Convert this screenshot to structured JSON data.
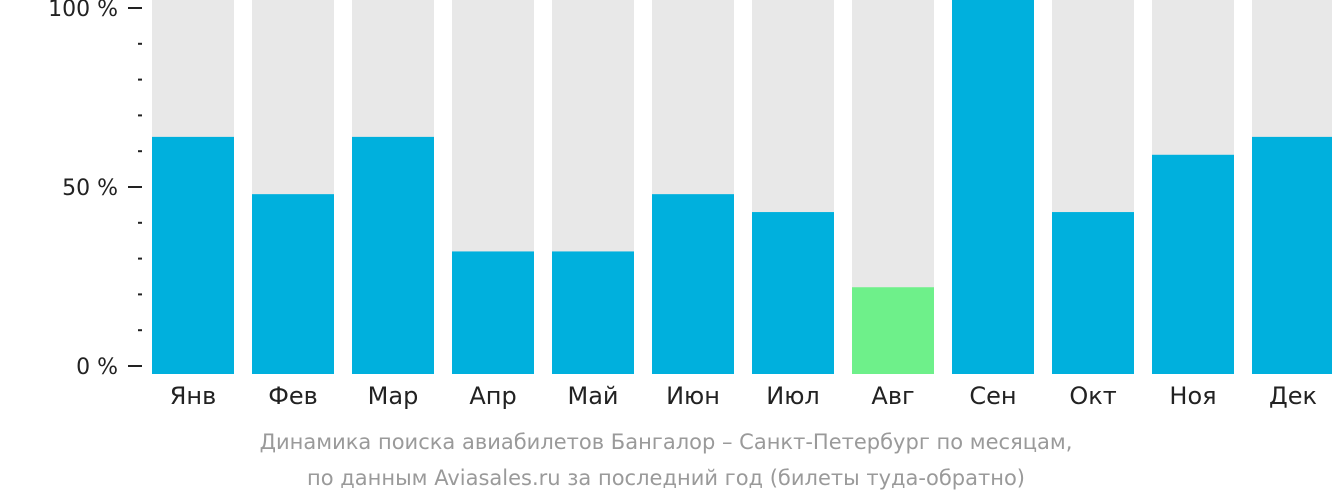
{
  "chart_data": {
    "type": "bar",
    "categories": [
      "Янв",
      "Фев",
      "Мар",
      "Апр",
      "Май",
      "Июн",
      "Июл",
      "Авг",
      "Сен",
      "Окт",
      "Ноя",
      "Дек"
    ],
    "values": [
      64,
      48,
      64,
      32,
      32,
      48,
      43,
      22,
      100,
      43,
      59,
      64
    ],
    "highlight_category": "Авг",
    "ylim": [
      0,
      100
    ],
    "y_ticks": [
      "0 %",
      "50 %",
      "100 %"
    ],
    "y_tick_values": [
      0,
      50,
      100
    ],
    "grid": false,
    "colors": {
      "bar": "#00b0dd",
      "highlight": "#6ef08a",
      "background_bar": "#e8e8e8",
      "axis": "#222222"
    }
  },
  "caption": {
    "line1": "Динамика поиска авиабилетов Бангалор – Санкт-Петербург по месяцам,",
    "line2": "по данным Aviasales.ru за последний год (билеты туда-обратно)"
  }
}
